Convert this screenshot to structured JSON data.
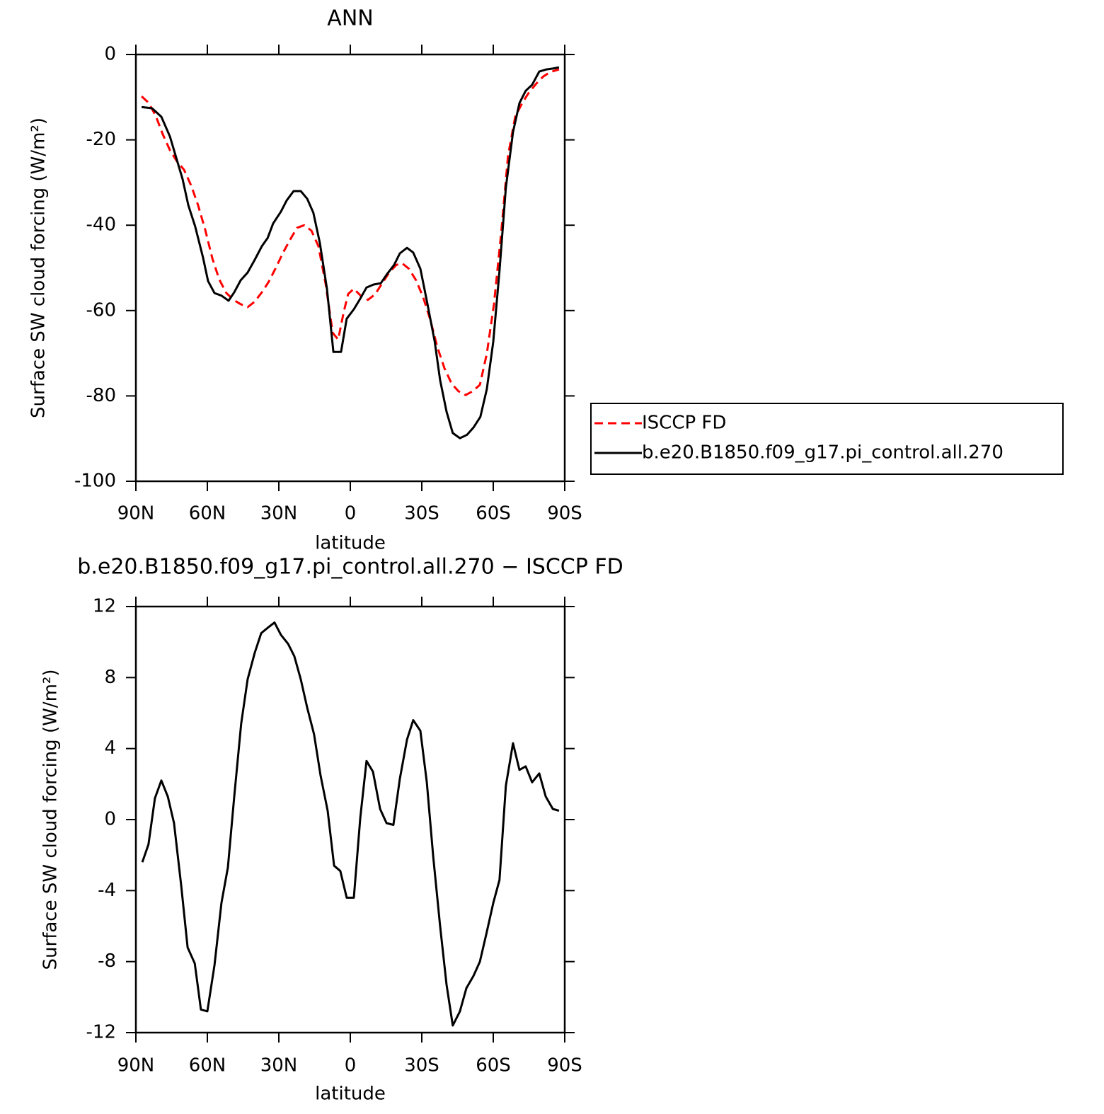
{
  "chart_data": [
    {
      "type": "line",
      "title": "ANN",
      "xlabel": "latitude",
      "ylabel": "Surface SW cloud forcing (W/m²)",
      "xlim": [
        90,
        -90
      ],
      "xticks": [
        {
          "value": 90,
          "label": "90N"
        },
        {
          "value": 60,
          "label": "60N"
        },
        {
          "value": 30,
          "label": "30N"
        },
        0,
        {
          "value": -30,
          "label": "30S"
        },
        {
          "value": -60,
          "label": "60S"
        },
        {
          "value": -90,
          "label": "90S"
        }
      ],
      "ylim": [
        -100,
        0
      ],
      "yticks": [
        -100,
        -80,
        -60,
        -40,
        -20,
        0
      ],
      "legend": "right",
      "series": [
        {
          "name": "ISCCP FD",
          "color": "#ff0000",
          "dashed": true,
          "x": [
            87.6,
            84.7,
            81.7,
            78.7,
            75.7,
            72.8,
            69.8,
            66.8,
            63.9,
            60.9,
            57.9,
            55.0,
            52.0,
            49.0,
            46.0,
            43.1,
            40.1,
            37.1,
            34.2,
            31.2,
            28.2,
            25.2,
            22.3,
            19.3,
            16.3,
            13.4,
            10.4,
            7.4,
            5.1,
            2.7,
            0.9,
            -1.5,
            -4.5,
            -7.4,
            -10.4,
            -13.4,
            -16.3,
            -19.3,
            -21.7,
            -24.6,
            -27.6,
            -30.6,
            -33.6,
            -36.5,
            -39.5,
            -42.5,
            -45.4,
            -48.4,
            -51.4,
            -54.4,
            -57.3,
            -60.3,
            -63.3,
            -66.2,
            -69.2,
            -72.2,
            -75.1,
            -78.1,
            -81.1,
            -84.0,
            -87.6
          ],
          "values": [
            -9.8,
            -11.3,
            -14.3,
            -18.7,
            -22.4,
            -25.0,
            -27.0,
            -30.7,
            -35.3,
            -41.1,
            -47.8,
            -52.7,
            -55.9,
            -57.5,
            -58.5,
            -59.2,
            -57.9,
            -55.7,
            -53.2,
            -49.9,
            -46.4,
            -43.3,
            -40.6,
            -40.0,
            -41.3,
            -44.9,
            -53.6,
            -65.2,
            -66.8,
            -60.2,
            -56.1,
            -54.9,
            -56.6,
            -57.5,
            -56.2,
            -53.6,
            -51.1,
            -49.3,
            -48.9,
            -50.2,
            -52.9,
            -56.9,
            -62.2,
            -68.5,
            -73.5,
            -77.1,
            -78.9,
            -79.8,
            -78.9,
            -77.4,
            -70.1,
            -58.5,
            -42.0,
            -23.7,
            -14.6,
            -11.3,
            -8.8,
            -6.8,
            -5.1,
            -4.1,
            -3.5
          ]
        },
        {
          "name": "b.e20.B1850.f09_g17.pi_control.all.270",
          "color": "#000000",
          "dashed": false,
          "x": [
            87.6,
            83.2,
            79.3,
            75.7,
            70.4,
            68.0,
            65.1,
            61.8,
            59.7,
            57.0,
            54.1,
            51.1,
            48.7,
            46.0,
            43.1,
            40.1,
            37.1,
            34.7,
            32.4,
            29.1,
            26.7,
            23.8,
            20.8,
            18.1,
            15.5,
            12.8,
            9.8,
            7.1,
            3.9,
            1.5,
            -1.5,
            -4.2,
            -6.8,
            -9.8,
            -12.8,
            -15.5,
            -18.4,
            -20.8,
            -23.8,
            -26.4,
            -29.4,
            -32.1,
            -35.4,
            -37.7,
            -40.4,
            -43.0,
            -46.0,
            -49.0,
            -51.7,
            -54.6,
            -57.3,
            -60.0,
            -62.6,
            -65.3,
            -68.3,
            -71.0,
            -73.6,
            -76.3,
            -79.3,
            -82.3,
            -85.0,
            -87.6
          ],
          "values": [
            -12.3,
            -12.6,
            -14.6,
            -19.2,
            -29.2,
            -35.3,
            -40.3,
            -47.6,
            -53.1,
            -55.9,
            -56.5,
            -57.7,
            -55.7,
            -52.9,
            -51.1,
            -48.1,
            -44.9,
            -43.0,
            -39.6,
            -36.8,
            -34.2,
            -32.0,
            -32.0,
            -33.8,
            -37.1,
            -44.1,
            -54.9,
            -69.7,
            -69.7,
            -61.9,
            -59.7,
            -57.2,
            -54.6,
            -53.9,
            -53.6,
            -51.4,
            -49.3,
            -46.6,
            -45.3,
            -46.4,
            -50.2,
            -57.7,
            -67.2,
            -76.3,
            -83.7,
            -88.7,
            -89.9,
            -89.1,
            -87.4,
            -84.9,
            -78.4,
            -67.3,
            -50.7,
            -31.2,
            -18.2,
            -11.4,
            -8.5,
            -7.1,
            -4.0,
            -3.5,
            -3.3,
            -3.0
          ]
        }
      ]
    },
    {
      "type": "line",
      "title": "b.e20.B1850.f09_g17.pi_control.all.270 − ISCCP FD",
      "xlabel": "latitude",
      "ylabel": "Surface SW cloud forcing (W/m²)",
      "xlim": [
        90,
        -90
      ],
      "xticks": [
        {
          "value": 90,
          "label": "90N"
        },
        {
          "value": 60,
          "label": "60N"
        },
        {
          "value": 30,
          "label": "30N"
        },
        0,
        {
          "value": -30,
          "label": "30S"
        },
        {
          "value": -60,
          "label": "60S"
        },
        {
          "value": -90,
          "label": "90S"
        }
      ],
      "ylim": [
        -12,
        12
      ],
      "yticks": [
        -12,
        -8,
        -4,
        0,
        4,
        8,
        12
      ],
      "series": [
        {
          "color": "#000000",
          "dashed": false,
          "x": [
            87.3,
            84.7,
            82.0,
            79.3,
            76.6,
            74.0,
            71.0,
            68.3,
            65.3,
            62.7,
            60.0,
            57.0,
            54.1,
            51.4,
            48.7,
            45.8,
            43.1,
            40.1,
            37.4,
            34.7,
            31.8,
            29.1,
            26.1,
            23.5,
            20.8,
            18.1,
            15.2,
            12.5,
            9.5,
            6.8,
            4.2,
            1.5,
            -1.5,
            -4.2,
            -6.8,
            -9.5,
            -12.5,
            -15.2,
            -18.1,
            -20.8,
            -23.8,
            -26.4,
            -29.4,
            -32.1,
            -34.8,
            -37.7,
            -40.4,
            -43.0,
            -46.0,
            -48.7,
            -51.7,
            -54.4,
            -57.0,
            -60.0,
            -62.6,
            -65.3,
            -68.3,
            -71.0,
            -73.6,
            -76.3,
            -79.3,
            -82.0,
            -85.0,
            -87.6
          ],
          "values": [
            -2.4,
            -1.4,
            1.2,
            2.2,
            1.3,
            -0.2,
            -3.7,
            -7.2,
            -8.1,
            -10.7,
            -10.8,
            -8.2,
            -4.7,
            -2.7,
            1.3,
            5.4,
            7.9,
            9.4,
            10.5,
            10.8,
            11.1,
            10.4,
            9.9,
            9.2,
            7.9,
            6.3,
            4.8,
            2.5,
            0.5,
            -2.6,
            -2.9,
            -4.4,
            -4.4,
            0.1,
            3.3,
            2.7,
            0.6,
            -0.2,
            -0.3,
            2.3,
            4.5,
            5.6,
            5.0,
            2.1,
            -2.1,
            -6.0,
            -9.3,
            -11.6,
            -10.8,
            -9.5,
            -8.8,
            -8.0,
            -6.5,
            -4.7,
            -3.4,
            1.9,
            4.3,
            2.8,
            3.0,
            2.1,
            2.6,
            1.3,
            0.6,
            0.5
          ]
        }
      ]
    }
  ]
}
